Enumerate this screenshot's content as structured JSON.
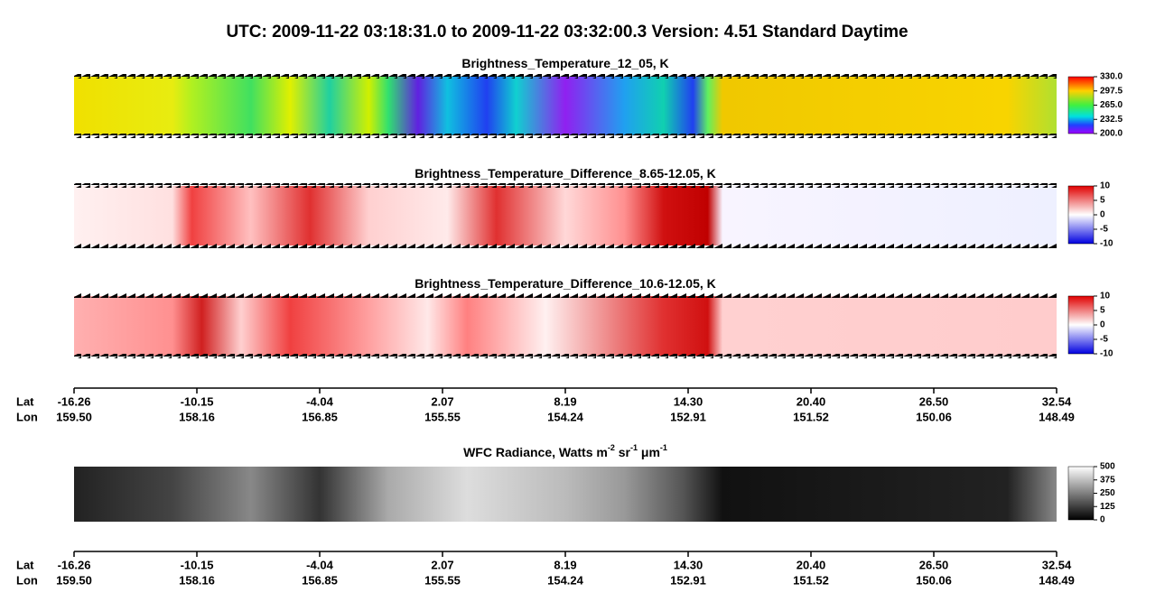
{
  "title": "UTC:  2009-11-22   03:18:31.0  to  2009-11-22   03:32:00.3    Version: 4.51  Standard Daytime",
  "panels": [
    {
      "title": [
        {
          "text": "Brightness_Temperature_12_05, K"
        }
      ],
      "colorbar": [
        "330.0",
        "297.5",
        "265.0",
        "232.5",
        "200.0"
      ]
    },
    {
      "title": [
        {
          "text": "Brightness_Temperature_Difference_8.65-12.05, K"
        }
      ],
      "colorbar": [
        "10",
        "5",
        "0",
        "-5",
        "-10"
      ]
    },
    {
      "title": [
        {
          "text": "Brightness_Temperature_Difference_10.6-12.05, K"
        }
      ],
      "colorbar": [
        "10",
        "5",
        "0",
        "-5",
        "-10"
      ]
    },
    {
      "title": [
        {
          "text": "WFC Radiance, Watts m"
        },
        {
          "text": "-2",
          "sup": true
        },
        {
          "text": " sr"
        },
        {
          "text": "-1",
          "sup": true
        },
        {
          "text": " μm"
        },
        {
          "text": "-1",
          "sup": true
        }
      ],
      "colorbar": [
        "500",
        "375",
        "250",
        "125",
        "0"
      ]
    }
  ],
  "axes": [
    {
      "lat_label": "Lat",
      "lon_label": "Lon",
      "lat": [
        "-16.26",
        "-10.15",
        "-4.04",
        "2.07",
        "8.19",
        "14.30",
        "20.40",
        "26.50",
        "32.54"
      ],
      "lon": [
        "159.50",
        "158.16",
        "156.85",
        "155.55",
        "154.24",
        "152.91",
        "151.52",
        "150.06",
        "148.49"
      ]
    },
    {
      "lat_label": "Lat",
      "lon_label": "Lon",
      "lat": [
        "-16.26",
        "-10.15",
        "-4.04",
        "2.07",
        "8.19",
        "14.30",
        "20.40",
        "26.50",
        "32.54"
      ],
      "lon": [
        "159.50",
        "158.16",
        "156.85",
        "155.55",
        "154.24",
        "152.91",
        "151.52",
        "150.06",
        "148.49"
      ]
    }
  ]
}
